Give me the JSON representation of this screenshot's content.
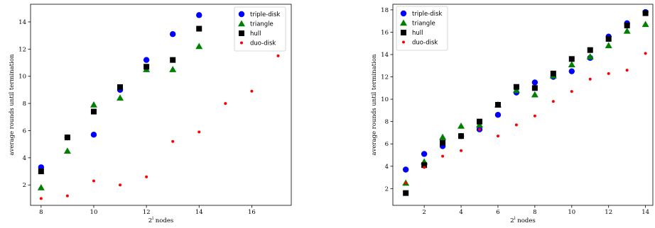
{
  "colors": {
    "triple_disk": "#0000ff",
    "triangle": "#008000",
    "hull": "#000000",
    "duo_disk": "#ff0000"
  },
  "chart_data": [
    {
      "type": "scatter",
      "xlabel": "2^i nodes",
      "ylabel": "average rounds until termination",
      "xlim": [
        7.6,
        17.5
      ],
      "ylim": [
        0.5,
        15.3
      ],
      "xticks": [
        8,
        10,
        12,
        14,
        16
      ],
      "yticks": [
        2,
        4,
        6,
        8,
        10,
        12,
        14
      ],
      "legend_position": "top-right",
      "series": [
        {
          "name": "triple-disk",
          "marker": "circle",
          "x": [
            8,
            9,
            10,
            11,
            12,
            13,
            14
          ],
          "y": [
            3.3,
            5.5,
            5.7,
            9.0,
            11.2,
            13.1,
            14.5
          ]
        },
        {
          "name": "triangle",
          "marker": "triangle",
          "x": [
            8,
            9,
            10,
            11,
            12,
            13,
            14
          ],
          "y": [
            1.8,
            4.5,
            7.9,
            8.4,
            10.5,
            10.5,
            12.2
          ]
        },
        {
          "name": "hull",
          "marker": "square",
          "x": [
            8,
            9,
            10,
            11,
            12,
            13,
            14
          ],
          "y": [
            3.0,
            5.5,
            7.4,
            9.2,
            10.7,
            11.2,
            13.5
          ]
        },
        {
          "name": "duo-disk",
          "marker": "dot",
          "x": [
            8,
            9,
            10,
            11,
            12,
            13,
            14,
            15,
            16,
            17
          ],
          "y": [
            1.0,
            1.2,
            2.3,
            2.0,
            2.6,
            5.2,
            5.9,
            8.0,
            8.9,
            11.5
          ]
        }
      ]
    },
    {
      "type": "scatter",
      "xlabel": "2^i nodes",
      "ylabel": "average rounds until termination",
      "xlim": [
        0.3,
        14.4
      ],
      "ylim": [
        0.5,
        18.5
      ],
      "xticks": [
        2,
        4,
        6,
        8,
        10,
        12,
        14
      ],
      "yticks": [
        2,
        4,
        6,
        8,
        10,
        12,
        14,
        16,
        18
      ],
      "legend_position": "top-left",
      "series": [
        {
          "name": "triple-disk",
          "marker": "circle",
          "x": [
            1,
            2,
            3,
            4,
            5,
            6,
            7,
            8,
            9,
            10,
            11,
            12,
            13,
            14
          ],
          "y": [
            3.7,
            5.1,
            5.8,
            6.7,
            7.3,
            8.6,
            10.6,
            11.5,
            12.0,
            12.5,
            13.7,
            15.6,
            16.8,
            17.8
          ]
        },
        {
          "name": "triangle",
          "marker": "triangle",
          "x": [
            1,
            2,
            3,
            4,
            5,
            6,
            7,
            8,
            9,
            10,
            11,
            12,
            13,
            14
          ],
          "y": [
            2.5,
            4.4,
            6.6,
            7.6,
            7.7,
            9.5,
            10.8,
            10.4,
            12.1,
            13.1,
            13.8,
            14.8,
            16.1,
            16.7
          ]
        },
        {
          "name": "hull",
          "marker": "square",
          "x": [
            1,
            2,
            3,
            4,
            5,
            6,
            7,
            8,
            9,
            10,
            11,
            12,
            13,
            14
          ],
          "y": [
            1.6,
            4.1,
            6.1,
            6.7,
            8.0,
            9.5,
            11.1,
            11.0,
            12.3,
            13.6,
            14.4,
            15.4,
            16.6,
            17.7
          ]
        },
        {
          "name": "duo-disk",
          "marker": "dot",
          "x": [
            1,
            2,
            3,
            4,
            5,
            6,
            7,
            8,
            9,
            10,
            11,
            12,
            13,
            14
          ],
          "y": [
            2.5,
            3.9,
            4.9,
            5.4,
            7.3,
            6.7,
            7.7,
            8.5,
            9.8,
            10.7,
            11.8,
            12.3,
            12.6,
            14.1
          ]
        }
      ]
    }
  ]
}
